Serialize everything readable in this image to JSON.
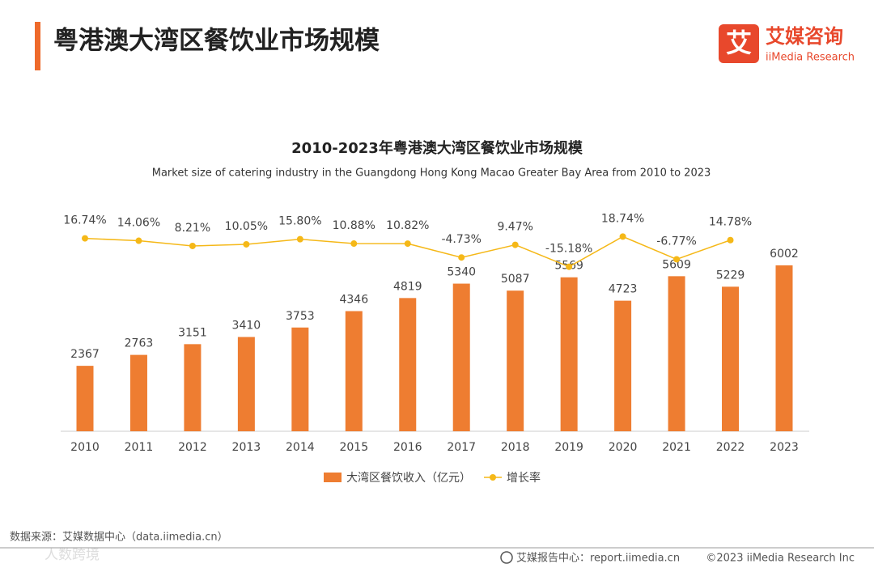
{
  "header": {
    "title": "粤港澳大湾区餐饮业市场规模"
  },
  "logo": {
    "icon": "艾",
    "name": "艾媒咨询",
    "sub": "iiMedia Research"
  },
  "chart_data": {
    "type": "bar",
    "title": "2010-2023年粤港澳大湾区餐饮业市场规模",
    "subtitle": "Market size of catering industry in the Guangdong Hong Kong Macao Greater Bay Area from 2010 to 2023",
    "categories": [
      "2010",
      "2011",
      "2012",
      "2013",
      "2014",
      "2015",
      "2016",
      "2017",
      "2018",
      "2019",
      "2020",
      "2021",
      "2022",
      "2023"
    ],
    "series": [
      {
        "name": "大湾区餐饮收入（亿元）",
        "type": "bar",
        "color": "#ee7d31",
        "values": [
          2367,
          2763,
          3151,
          3410,
          3753,
          4346,
          4819,
          5340,
          5087,
          5569,
          4723,
          5609,
          5229,
          6002
        ]
      },
      {
        "name": "增长率",
        "type": "line",
        "axis": "y2",
        "color": "#f5b818",
        "values": [
          16.74,
          14.06,
          8.21,
          10.05,
          15.8,
          10.88,
          10.82,
          -4.73,
          9.47,
          -15.18,
          18.74,
          -6.77,
          14.78,
          null
        ],
        "value_labels": [
          "16.74%",
          "14.06%",
          "8.21%",
          "10.05%",
          "15.80%",
          "10.88%",
          "10.82%",
          "-4.73%",
          "9.47%",
          "-15.18%",
          "18.74%",
          "-6.77%",
          "14.78%",
          null
        ]
      }
    ],
    "ylim": [
      0,
      6000
    ],
    "y2lim": [
      -20,
      20
    ],
    "legend": "bottom"
  },
  "footer": {
    "source": "数据来源：艾媒数据中心（data.iimedia.cn）",
    "watermark": "人数跨境",
    "report": "艾媒报告中心：report.iimedia.cn",
    "copyright": "©2023  iiMedia Research Inc"
  }
}
